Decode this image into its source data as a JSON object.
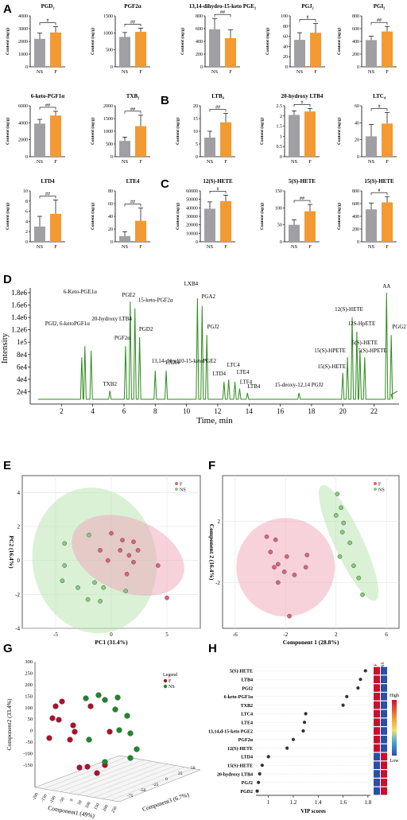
{
  "panel_labels": [
    "A",
    "B",
    "C",
    "D",
    "E",
    "F",
    "G",
    "H"
  ],
  "colors": {
    "ns": "#a0a0a4",
    "f": "#f39a32",
    "chrom": "#2e8b1e",
    "pink": "#f0a5b8",
    "green": "#b6e3ae",
    "ptF": "#e0607a",
    "ptNS": "#80cf76",
    "darkred": "#b2102a",
    "darkgreen": "#1b8a2b"
  },
  "bar_panels": [
    {
      "id": "PGD2",
      "title": "PGD₂",
      "ylabel": "Content (ng/g)",
      "ticks": [
        0,
        1000,
        2000,
        3000,
        4000
      ],
      "ymax": 4000,
      "ns": [
        2200,
        450
      ],
      "f": [
        2700,
        450
      ],
      "sig": "#",
      "cats": [
        "NS",
        "F"
      ]
    },
    {
      "id": "PGF2a",
      "title": "PGF2α",
      "ylabel": "Content (ng/g)",
      "ticks": [
        0,
        500,
        1000,
        1500
      ],
      "ymax": 1500,
      "ns": [
        880,
        130
      ],
      "f": [
        1030,
        110
      ],
      "sig": "##",
      "cats": [
        "NS",
        "F"
      ]
    },
    {
      "id": "dhkPGE2",
      "title": "13,14-dihydro-15-keto PGE₂",
      "ylabel": "Content (ng/g)",
      "ticks": [
        0,
        200,
        400,
        600,
        800
      ],
      "ymax": 800,
      "ns": [
        590,
        170
      ],
      "f": [
        450,
        130
      ],
      "sig": "##",
      "cats": [
        "NS",
        "F"
      ]
    },
    {
      "id": "PGJ2",
      "title": "PGJ₂",
      "ylabel": "Content (ng/g)",
      "ticks": [
        0,
        20,
        40,
        60,
        80,
        100
      ],
      "ymax": 100,
      "ns": [
        53,
        14
      ],
      "f": [
        67,
        18
      ],
      "sig": "#",
      "cats": [
        "NS",
        "F"
      ]
    },
    {
      "id": "PGI2",
      "title": "PGI₂",
      "ylabel": "Content (ng/g)",
      "ticks": [
        0,
        200,
        400,
        600,
        800
      ],
      "ymax": 800,
      "ns": [
        420,
        60
      ],
      "f": [
        555,
        80
      ],
      "sig": "##",
      "cats": [
        "NS",
        "F"
      ]
    },
    {
      "id": "ketoPGF1a",
      "title": "6-keto-PGF1α",
      "ylabel": "Content (ng/g)",
      "ticks": [
        0,
        2000,
        4000,
        6000
      ],
      "ymax": 6000,
      "ns": [
        3900,
        500
      ],
      "f": [
        4850,
        500
      ],
      "sig": "##",
      "cats": [
        "NS",
        "F"
      ]
    },
    {
      "id": "TXB2",
      "title": "TXB₂",
      "ylabel": "Content (ng/g)",
      "ticks": [
        0,
        500,
        1000,
        1500,
        2000
      ],
      "ymax": 2000,
      "ns": [
        620,
        150
      ],
      "f": [
        1200,
        430
      ],
      "sig": "##",
      "cats": [
        "NS",
        "F"
      ]
    },
    {
      "id": "LTB4",
      "title": "LTB₄",
      "ylabel": "Content (ng/g)",
      "ticks": [
        0,
        5,
        10,
        15,
        20
      ],
      "ymax": 20,
      "ns": [
        7.5,
        2.5
      ],
      "f": [
        13.5,
        3.5
      ],
      "sig": "##",
      "cats": [
        "NS",
        "F"
      ]
    },
    {
      "id": "hLTB4",
      "title": "20-hydroxy LTB4",
      "ylabel": "Content (ng/g)",
      "ticks": [
        0,
        0.5,
        1.0,
        1.5,
        2.0,
        2.5
      ],
      "ymax": 2.5,
      "ns": [
        2.05,
        0.2
      ],
      "f": [
        2.22,
        0.15
      ],
      "sig": "#",
      "cats": [
        "NS",
        "F"
      ]
    },
    {
      "id": "LTC4",
      "title": "LTC₄",
      "ylabel": "Content (ng/g)",
      "ticks": [
        0,
        20,
        40,
        60
      ],
      "ymax": 60,
      "ns": [
        24,
        14
      ],
      "f": [
        39,
        13
      ],
      "sig": "#",
      "cats": [
        "NS",
        "F"
      ]
    },
    {
      "id": "LTD4",
      "title": "LTD4",
      "ylabel": "Content (ng/g)",
      "ticks": [
        0,
        2,
        4,
        6,
        8,
        10
      ],
      "ymax": 10,
      "ns": [
        3,
        2
      ],
      "f": [
        5.5,
        2.7
      ],
      "sig": "##",
      "cats": [
        "NS",
        "F"
      ]
    },
    {
      "id": "LTE4",
      "title": "LTE4",
      "ylabel": "Content (ng/g)",
      "ticks": [
        0,
        20,
        40,
        60,
        80
      ],
      "ymax": 80,
      "ns": [
        9,
        7
      ],
      "f": [
        33,
        20
      ],
      "sig": "##",
      "cats": [
        "NS",
        "F"
      ]
    },
    {
      "id": "HETE12",
      "title": "12(S)-HETE",
      "ylabel": "Content (ng/g)",
      "ticks": [
        0,
        10000,
        20000,
        30000,
        40000,
        50000,
        60000
      ],
      "ymax": 60000,
      "ns": [
        39000,
        8000
      ],
      "f": [
        48000,
        7000
      ],
      "sig": "#",
      "cats": [
        "NS",
        "F"
      ]
    },
    {
      "id": "HETE5",
      "title": "5(S)-HETE",
      "ylabel": "Content (ng/g)",
      "ticks": [
        0,
        50,
        100,
        150
      ],
      "ymax": 150,
      "ns": [
        50,
        15
      ],
      "f": [
        90,
        20
      ],
      "sig": "##",
      "cats": [
        "NS",
        "F"
      ]
    },
    {
      "id": "HETE15",
      "title": "15(S)-HETE",
      "ylabel": "Content (ng/g)",
      "ticks": [
        0,
        200,
        400,
        600,
        800
      ],
      "ymax": 800,
      "ns": [
        510,
        100
      ],
      "f": [
        620,
        90
      ],
      "sig": "#",
      "cats": [
        "NS",
        "F"
      ]
    }
  ],
  "chart_data": [
    {
      "type": "bar",
      "panel": "A/B/C",
      "note_groups": [
        "NS",
        "F"
      ]
    },
    {
      "type": "line",
      "panel": "D",
      "xlabel": "Time, min",
      "ylabel": "Intensity",
      "x_ticks": [
        2,
        4,
        6,
        8,
        10,
        12,
        14,
        16,
        18,
        20,
        22
      ],
      "y_ticks": [
        "2e4",
        "4e4",
        "6e4",
        "8e4",
        "1e5",
        "1.2e6",
        "1.4e6",
        "1.6e6",
        "1.8e6"
      ],
      "peaks": [
        {
          "name": "TXB2",
          "t": 5.1,
          "h": 0.12
        },
        {
          "name": "6-Keto-PGE1α",
          "t": 3.5,
          "h": 0.52
        },
        {
          "name": "PGI2, 6-ketoPGF1α",
          "t": 3.3,
          "h": 0.42
        },
        {
          "name": "20-hydroxy LTB4",
          "t": 3.9,
          "h": 0.48
        },
        {
          "name": "PGF2α",
          "t": 6.1,
          "h": 0.52
        },
        {
          "name": "PGE2",
          "t": 6.4,
          "h": 0.92
        },
        {
          "name": "15-keto-PGF2α",
          "t": 6.7,
          "h": 0.86
        },
        {
          "name": "PGD2",
          "t": 7.0,
          "h": 0.6
        },
        {
          "name": "13,14-dihyd10-15-ketoPGE2",
          "t": 8.0,
          "h": 0.3
        },
        {
          "name": "LXA4",
          "t": 8.7,
          "h": 0.3
        },
        {
          "name": "LXB4",
          "t": 10.7,
          "h": 0.95
        },
        {
          "name": "PGA2",
          "t": 11.0,
          "h": 0.88
        },
        {
          "name": "PGJ2",
          "t": 11.3,
          "h": 0.62
        },
        {
          "name": "LTD4",
          "t": 12.4,
          "h": 0.2
        },
        {
          "name": "LTC4",
          "t": 12.7,
          "h": 0.22
        },
        {
          "name": "LTE4",
          "t": 13.1,
          "h": 0.2
        },
        {
          "name": "LTF4",
          "t": 13.4,
          "h": 0.14
        },
        {
          "name": "LTB4",
          "t": 13.9,
          "h": 0.1
        },
        {
          "name": "15-deoxy-12,14 PGJ2",
          "t": 17.2,
          "h": 0.1
        },
        {
          "name": "15(S)-HETE",
          "t": 20.0,
          "h": 0.28
        },
        {
          "name": "15(S)-HPETE",
          "t": 20.3,
          "h": 0.42
        },
        {
          "name": "12(S)-HETE",
          "t": 20.6,
          "h": 0.78
        },
        {
          "name": "12S-HpETE",
          "t": 20.9,
          "h": 0.65
        },
        {
          "name": "5(S)-HETE",
          "t": 21.1,
          "h": 0.48
        },
        {
          "name": "5(S)-HPETE",
          "t": 21.4,
          "h": 0.42
        },
        {
          "name": "AA",
          "t": 22.8,
          "h": 1.0
        },
        {
          "name": "PGG2",
          "t": 23.1,
          "h": 0.62
        }
      ]
    },
    {
      "type": "scatter",
      "panel": "E",
      "xlabel": "PC1 (31.4%)",
      "ylabel": "PC2 (16.4%)",
      "xlim": [
        -8,
        8
      ],
      "ylim": [
        -4,
        5
      ],
      "x_ticks": [
        -5,
        0,
        5
      ],
      "y_ticks": [
        -4,
        -2,
        0,
        2,
        4
      ],
      "legend": [
        "F",
        "NS"
      ],
      "series": [
        {
          "name": "F",
          "points": [
            [
              0,
              1.6
            ],
            [
              1,
              1.2
            ],
            [
              2,
              1.1
            ],
            [
              -1,
              0.6
            ],
            [
              0.8,
              0.6
            ],
            [
              2.4,
              0.6
            ],
            [
              1.6,
              0.3
            ],
            [
              -0.3,
              0
            ],
            [
              2,
              -0.1
            ],
            [
              4.2,
              -0.3
            ],
            [
              1.4,
              -0.8
            ],
            [
              5,
              -2.2
            ]
          ]
        },
        {
          "name": "NS",
          "points": [
            [
              -4.2,
              -0.3
            ],
            [
              -2,
              1.5
            ],
            [
              -4.4,
              -1.2
            ],
            [
              -3,
              -1.6
            ],
            [
              -1.5,
              -1.3
            ],
            [
              -2.1,
              -2.3
            ],
            [
              -1,
              -2.4
            ],
            [
              -0.7,
              -1.6
            ],
            [
              1.3,
              -1.8
            ],
            [
              -4.2,
              1
            ]
          ]
        }
      ]
    },
    {
      "type": "scatter",
      "panel": "F",
      "xlabel": "Component 1 (28.8%)",
      "ylabel": "Component 2 (16.4%)",
      "xlim": [
        -7,
        7
      ],
      "ylim": [
        -5,
        5
      ],
      "x_ticks": [
        -6,
        -2,
        2,
        6
      ],
      "y_ticks": [
        -2,
        2
      ],
      "legend": [
        "F",
        "NS"
      ],
      "series": [
        {
          "name": "F",
          "points": [
            [
              -3.5,
              1
            ],
            [
              -2.8,
              0.8
            ],
            [
              -3.2,
              0
            ],
            [
              -1.9,
              -0.3
            ],
            [
              -0.3,
              -0.2
            ],
            [
              -2.6,
              -0.8
            ],
            [
              -2.9,
              -1
            ],
            [
              -2.1,
              -1.3
            ],
            [
              -0.4,
              -1
            ],
            [
              -2.6,
              -2
            ],
            [
              -1.3,
              -1.5
            ],
            [
              -1.7,
              -4.2
            ]
          ]
        },
        {
          "name": "NS",
          "points": [
            [
              2.1,
              3.8
            ],
            [
              2.4,
              2.9
            ],
            [
              2,
              2.4
            ],
            [
              2.6,
              1.9
            ],
            [
              2.5,
              1.3
            ],
            [
              3.1,
              0.6
            ],
            [
              2.3,
              -0.3
            ],
            [
              3.4,
              -0.9
            ],
            [
              3.8,
              -1.7
            ],
            [
              4.1,
              -2.8
            ]
          ]
        }
      ]
    },
    {
      "type": "scatter",
      "panel": "G",
      "xlabel": "Component1 (49%)",
      "ylabel": "Component2 (33.4%)",
      "zlabel": "Component3 (6.7%)",
      "legend_title": "Legend",
      "legend": [
        "F",
        "NS"
      ],
      "y_ticks": [
        -150,
        -100,
        -50,
        0,
        50,
        100,
        150,
        200,
        250,
        300
      ],
      "x_ticks": [
        -200,
        -150,
        -100,
        -50,
        0,
        50,
        100,
        150,
        200,
        250
      ],
      "z_ticks": [
        -75,
        -50,
        -25,
        0,
        25,
        50
      ]
    },
    {
      "type": "scatter",
      "panel": "H",
      "xlabel": "VIP scores",
      "x_ticks": [
        1.0,
        1.2,
        1.4,
        1.6,
        1.8
      ],
      "xlim": [
        0.9,
        1.82
      ],
      "color_legend": [
        "High",
        "Low"
      ],
      "group_cols": [
        "F",
        "NS"
      ],
      "categories": [
        "5(S)-HETE",
        "LTB4",
        "PGI2",
        "6-keto-PGF1α",
        "TXB2",
        "LTC4",
        "LTE4",
        "13,14,d-15-keto PGE2",
        "PGF2α",
        "12(S)-HETE",
        "LTD4",
        "15(S)-HETE",
        "20-hydroxy LTB4",
        "PGJ2",
        "PGD2"
      ],
      "values": [
        1.78,
        1.74,
        1.72,
        1.63,
        1.6,
        1.3,
        1.29,
        1.28,
        1.2,
        1.15,
        1.0,
        0.95,
        0.93,
        0.92,
        0.91
      ]
    }
  ]
}
